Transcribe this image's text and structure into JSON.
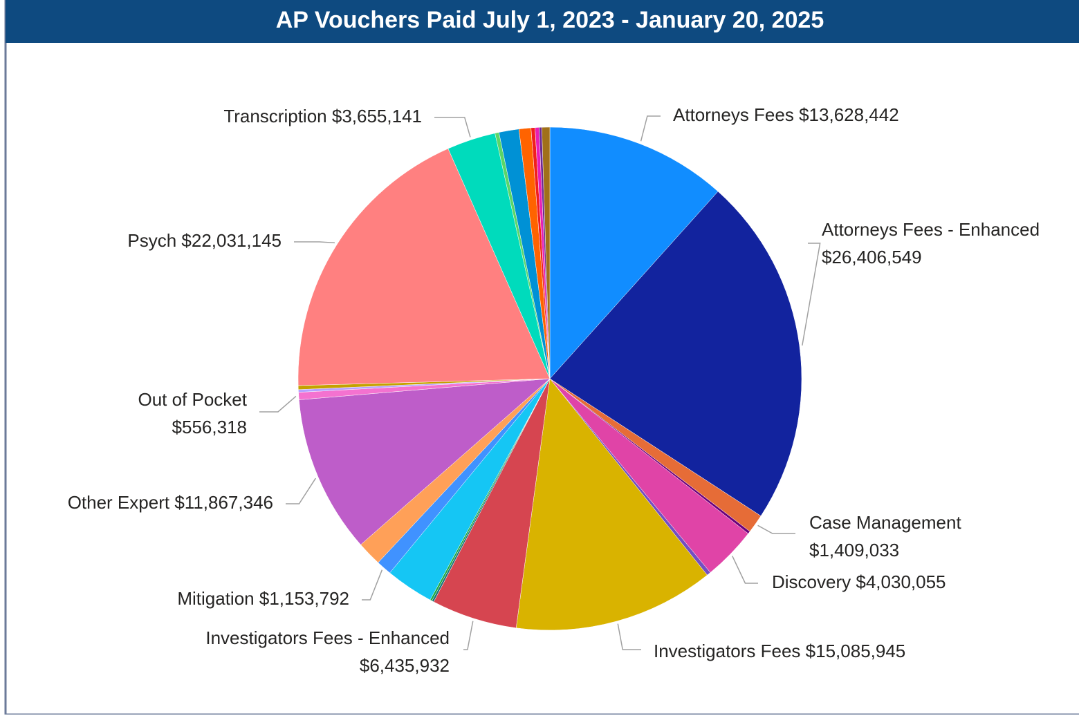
{
  "chart_data": {
    "type": "pie",
    "title": "AP Vouchers Paid July 1, 2023 - January 20, 2025",
    "categories": [
      "Attorneys Fees",
      "Attorneys Fees - Enhanced",
      "Case Management",
      null,
      "Discovery",
      null,
      "Investigators Fees",
      "Investigators Fees - Enhanced",
      null,
      null,
      null,
      "Mitigation",
      null,
      "Other Expert",
      "Out of Pocket",
      null,
      null,
      "Psych",
      "Transcription",
      null,
      null,
      null,
      null,
      null,
      null,
      null
    ],
    "values": [
      13628442,
      26406549,
      1409033,
      200000,
      4030055,
      300000,
      15085945,
      6435932,
      150000,
      150000,
      3600000,
      1153792,
      1850000,
      11867346,
      556318,
      200000,
      300000,
      22031145,
      3655141,
      300000,
      1500000,
      900000,
      300000,
      300000,
      200000,
      600000
    ],
    "value_labels": [
      "$13,628,442",
      "$26,406,549",
      "$1,409,033",
      null,
      "$4,030,055",
      null,
      "$15,085,945",
      "$6,435,932",
      null,
      null,
      null,
      "$1,153,792",
      null,
      "$11,867,346",
      "$556,318",
      null,
      null,
      "$22,031,145",
      "$3,655,141",
      null,
      null,
      null,
      null,
      null,
      null,
      null
    ],
    "colors": [
      "#118DFF",
      "#12239E",
      "#E66C37",
      "#6B007B",
      "#E044A7",
      "#744EC2",
      "#D9B300",
      "#D64550",
      "#197278",
      "#1AAB40",
      "#15C6F4",
      "#4092FF",
      "#FFA058",
      "#BE5DC9",
      "#F472D0",
      "#B5A1FF",
      "#C4A200",
      "#FF8080",
      "#00DBBC",
      "#5BD667",
      "#0091D5",
      "#FF6300",
      "#F11E1E",
      "#E81EB5",
      "#6B2A91",
      "#A0701A"
    ]
  }
}
